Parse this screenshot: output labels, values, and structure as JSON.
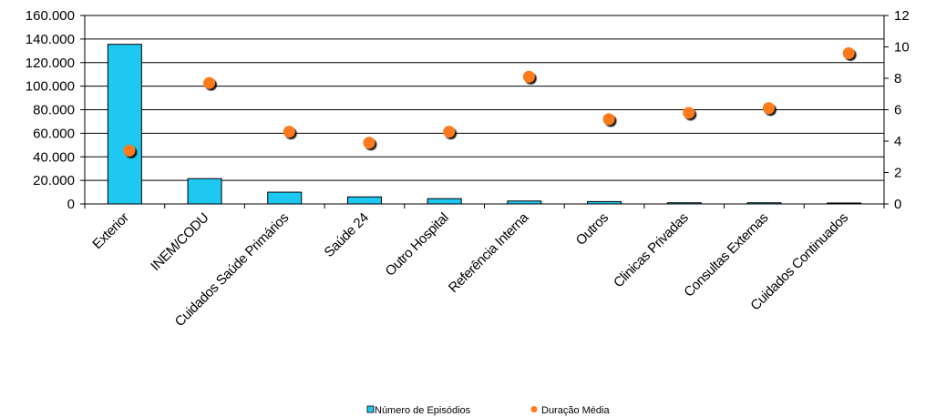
{
  "chart_data": {
    "type": "bar",
    "categories": [
      "Exterior",
      "INEM/CODU",
      "Cuidados Saúde Primários",
      "Saúde 24",
      "Outro Hospital",
      "Referência Interna",
      "Outros",
      "Clinicas Privadas",
      "Consultas Externas",
      "Cuidados Continuados"
    ],
    "series": [
      {
        "name": "Número de Episódios",
        "type": "bar",
        "axis": "left",
        "color": "#1ec8f0",
        "values": [
          135500,
          21500,
          10000,
          6000,
          4500,
          2500,
          2000,
          1000,
          1000,
          800
        ]
      },
      {
        "name": "Duração Média",
        "type": "scatter",
        "axis": "right",
        "color": "#ff7a1a",
        "values": [
          3.4,
          7.7,
          4.6,
          3.9,
          4.6,
          8.1,
          5.4,
          5.8,
          6.1,
          9.6
        ]
      }
    ],
    "y_left": {
      "range": [
        0,
        160000
      ],
      "ticks": [
        0,
        20000,
        40000,
        60000,
        80000,
        100000,
        120000,
        140000,
        160000
      ],
      "tick_labels": [
        "0",
        "20.000",
        "40.000",
        "60.000",
        "80.000",
        "100.000",
        "120.000",
        "140.000",
        "160.000"
      ]
    },
    "y_right": {
      "range": [
        0,
        12
      ],
      "ticks": [
        0,
        2,
        4,
        6,
        8,
        10,
        12
      ],
      "tick_labels": [
        "0",
        "2",
        "4",
        "6",
        "8",
        "10",
        "12"
      ]
    },
    "grid": true,
    "legend": "bottom-center",
    "title": "",
    "xlabel": "",
    "ylabel": ""
  }
}
